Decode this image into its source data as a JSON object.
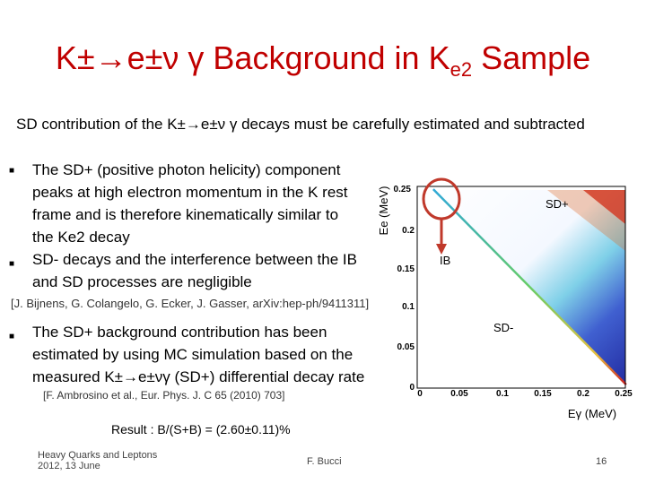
{
  "slide": {
    "title": "K±→e±ν γ Background in Ke2 Sample",
    "title_main": "K±→e±ν γ Background in K",
    "title_sub": "e2",
    "title_end": " Sample",
    "intro": "SD contribution of the K±→e±ν γ decays  must be carefully estimated and subtracted",
    "bullets": [
      {
        "line1": "The SD+ (positive photon helicity) component",
        "line2": "peaks  at high electron momentum in the K rest",
        "line3": "frame  and is therefore kinematically similar to",
        "line4": "the Ke2 decay"
      },
      {
        "line1": "SD- decays and the interference between the IB",
        "line2": "and SD processes are negligible"
      }
    ],
    "reference1": "[J. Bijnens, G. Colangelo, G. Ecker, J. Gasser, arXiv:hep-ph/9411311]",
    "bullet3": {
      "line1": "The SD+ background contribution has been",
      "line2": "estimated by using MC simulation based on the",
      "line3": "measured K±→e±νγ  (SD+) differential decay rate"
    },
    "reference2": "[F. Ambrosino et al., Eur. Phys. J. C 65 (2010) 703]",
    "result": "Result : B/(S+B) = (2.60±0.11)%",
    "footer": {
      "left1": "Heavy Quarks and Leptons",
      "left2": "2012, 13 June",
      "center": "F. Bucci",
      "page": "16"
    }
  },
  "plot": {
    "y_axis_label": "Ee (MeV)",
    "x_axis_label": "Eγ (MeV)",
    "y_ticks": [
      "0.2",
      "0.15",
      "0.1",
      "0.05",
      "0"
    ],
    "x_ticks": [
      "0",
      "0.05",
      "0.1",
      "0.15",
      "0.2",
      "0.25"
    ],
    "y_tick_top": "0.25",
    "region_labels": {
      "sd_plus": "SD+",
      "ib": "IB",
      "sd_minus": "SD-"
    },
    "colors": {
      "high": "#cc2222",
      "mid": "#66cc66",
      "low": "#3344cc",
      "arrow": "#c0392b"
    }
  }
}
